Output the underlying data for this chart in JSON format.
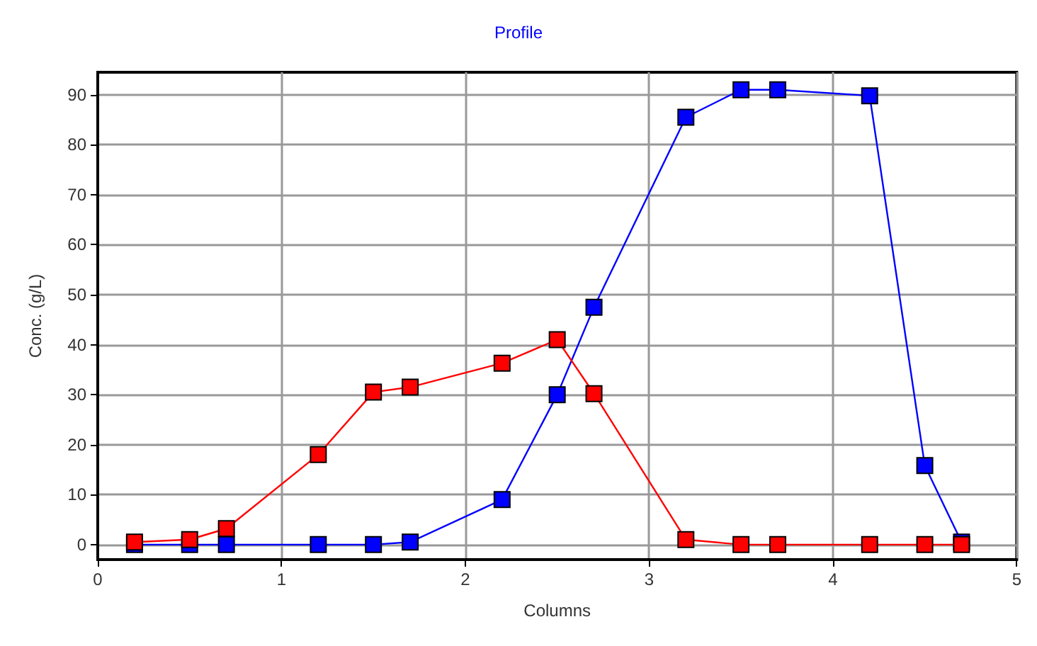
{
  "chart_data": {
    "type": "line",
    "title": "Profile",
    "xlabel": "Columns",
    "ylabel": "Conc. (g/L)",
    "xlim": [
      0,
      5
    ],
    "xticks": [
      0,
      1,
      2,
      3,
      4,
      5
    ],
    "ylim": [
      -3,
      94.5
    ],
    "yticks": [
      0,
      10,
      20,
      30,
      40,
      50,
      60,
      70,
      80,
      90
    ],
    "grid": true,
    "marker": "square",
    "line_style": "solid",
    "series": [
      {
        "color": "#ff0000",
        "x": [
          0.2,
          0.5,
          0.7,
          1.2,
          1.5,
          1.7,
          2.2,
          2.5,
          2.7,
          3.2,
          3.5,
          3.7,
          4.2,
          4.5,
          4.7
        ],
        "values": [
          0.5,
          1,
          3.2,
          18,
          30.5,
          31.5,
          36.3,
          41,
          30.2,
          1,
          0,
          0,
          0,
          0,
          0
        ]
      },
      {
        "color": "#0000ff",
        "x": [
          0.2,
          0.5,
          0.7,
          1.2,
          1.5,
          1.7,
          2.2,
          2.5,
          2.7,
          3.2,
          3.5,
          3.7,
          4.2,
          4.5,
          4.7
        ],
        "values": [
          0,
          0,
          0,
          0,
          0,
          0.5,
          9,
          30,
          47.5,
          85.5,
          91,
          91,
          89.8,
          15.8,
          0.5
        ]
      }
    ]
  }
}
